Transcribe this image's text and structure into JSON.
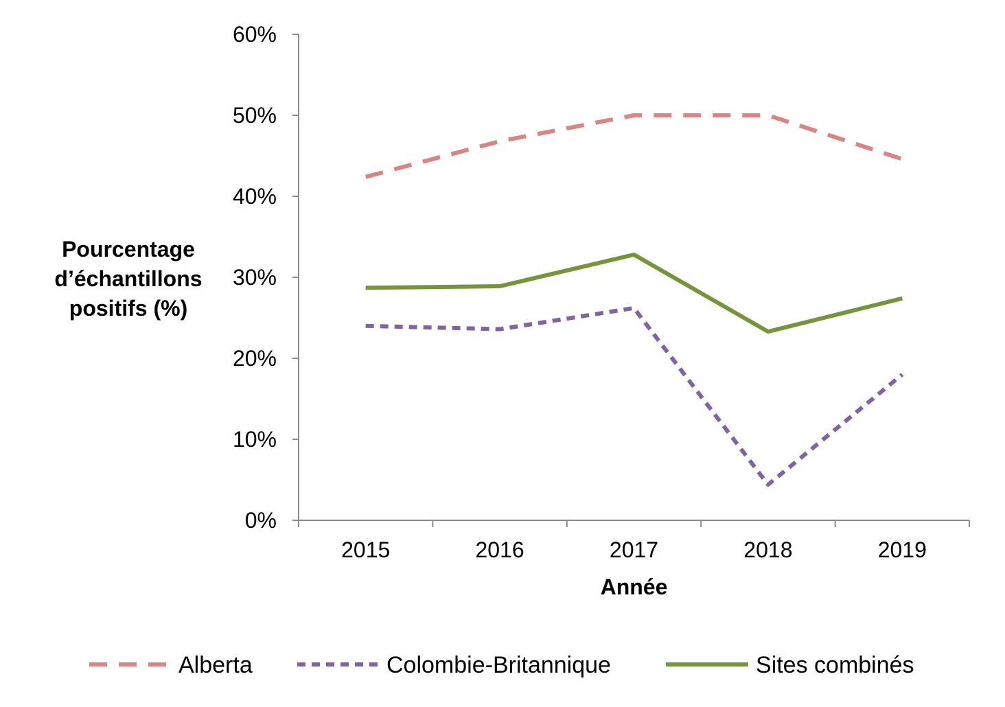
{
  "chart_data": {
    "type": "line",
    "title": "",
    "xlabel": "Année",
    "ylabel_lines": [
      "Pourcentage",
      "d’échantillons",
      "positifs (%)"
    ],
    "categories": [
      "2015",
      "2016",
      "2017",
      "2018",
      "2019"
    ],
    "ylim": [
      0,
      60
    ],
    "yticks": [
      0,
      10,
      20,
      30,
      40,
      50,
      60
    ],
    "ytick_labels": [
      "0%",
      "10%",
      "20%",
      "30%",
      "40%",
      "50%",
      "60%"
    ],
    "grid": false,
    "legend_position": "bottom",
    "series": [
      {
        "name": "Alberta",
        "values": [
          42.4,
          46.8,
          50.0,
          50.0,
          44.6
        ],
        "color": "#d88585",
        "style": "dashed"
      },
      {
        "name": "Colombie-Britannique",
        "values": [
          24.0,
          23.6,
          26.2,
          4.4,
          18.0
        ],
        "color": "#8064a2",
        "style": "dotted-dash"
      },
      {
        "name": "Sites combinés",
        "values": [
          28.7,
          28.9,
          32.8,
          23.3,
          27.4
        ],
        "color": "#77933c",
        "style": "solid"
      }
    ]
  }
}
